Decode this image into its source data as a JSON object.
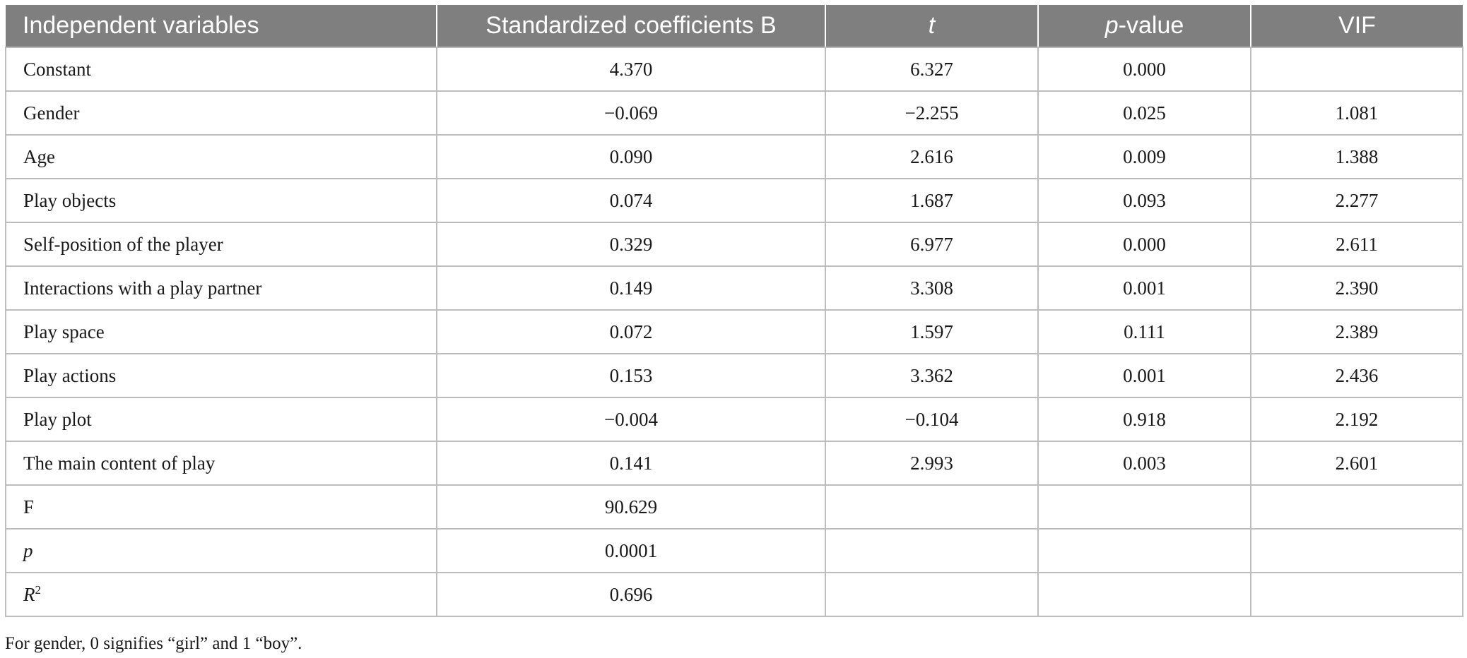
{
  "table": {
    "headers": {
      "col0": "Independent variables",
      "col1": "Standardized coefficients B",
      "col2": "t",
      "col3_italic": "p",
      "col3_rest": "-value",
      "col4": "VIF"
    },
    "rows": [
      {
        "label": "Constant",
        "b": "4.370",
        "t": "6.327",
        "p": "0.000",
        "vif": ""
      },
      {
        "label": "Gender",
        "b": "−0.069",
        "t": "−2.255",
        "p": "0.025",
        "vif": "1.081"
      },
      {
        "label": "Age",
        "b": "0.090",
        "t": "2.616",
        "p": "0.009",
        "vif": "1.388"
      },
      {
        "label": "Play objects",
        "b": "0.074",
        "t": "1.687",
        "p": "0.093",
        "vif": "2.277"
      },
      {
        "label": "Self-position of the player",
        "b": "0.329",
        "t": "6.977",
        "p": "0.000",
        "vif": "2.611"
      },
      {
        "label": "Interactions with a play partner",
        "b": "0.149",
        "t": "3.308",
        "p": "0.001",
        "vif": "2.390"
      },
      {
        "label": "Play space",
        "b": "0.072",
        "t": "1.597",
        "p": "0.111",
        "vif": "2.389"
      },
      {
        "label": "Play actions",
        "b": "0.153",
        "t": "3.362",
        "p": "0.001",
        "vif": "2.436"
      },
      {
        "label": "Play plot",
        "b": "−0.004",
        "t": "−0.104",
        "p": "0.918",
        "vif": "2.192"
      },
      {
        "label": "The main content of play",
        "b": "0.141",
        "t": "2.993",
        "p": "0.003",
        "vif": "2.601"
      },
      {
        "label": "F",
        "b": "90.629",
        "t": "",
        "p": "",
        "vif": ""
      },
      {
        "label": "p",
        "b": "0.0001",
        "t": "",
        "p": "",
        "vif": ""
      },
      {
        "label": "R",
        "label_sup": "2",
        "b": "0.696",
        "t": "",
        "p": "",
        "vif": ""
      }
    ]
  },
  "footnote": "For gender, 0 signifies “girl” and 1 “boy”."
}
